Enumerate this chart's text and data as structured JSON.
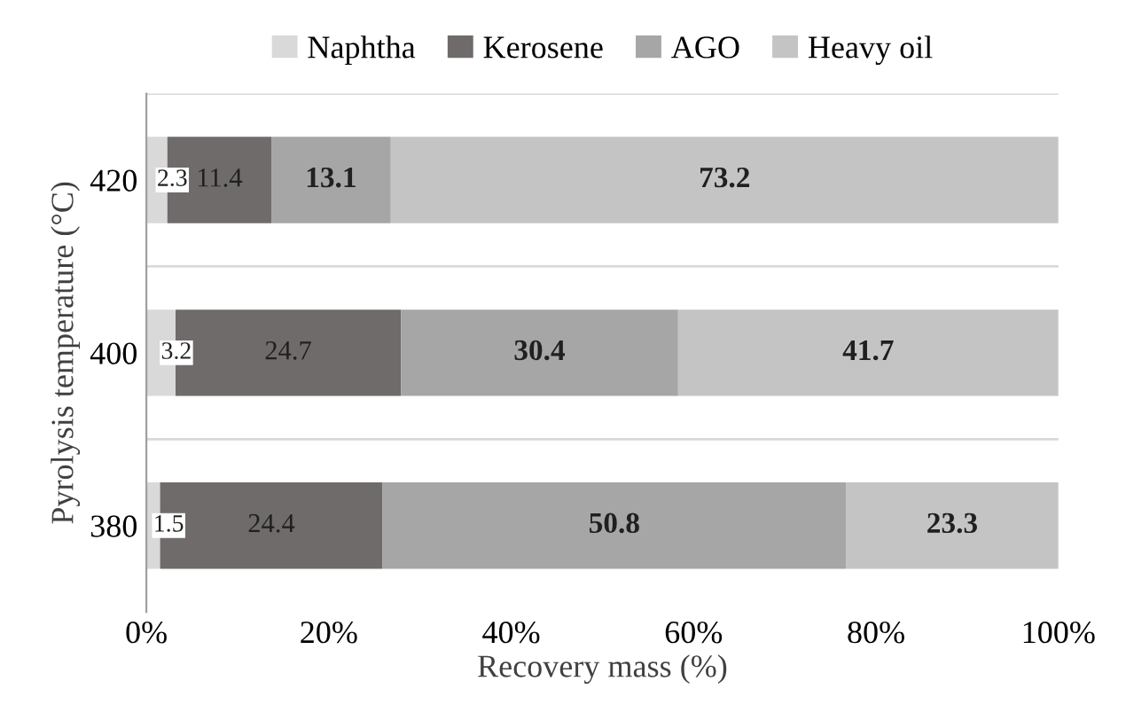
{
  "chart_data": {
    "type": "bar",
    "orientation": "horizontal",
    "stacked": true,
    "xlabel": "Recovery mass (%)",
    "ylabel": "Pyrolysis temperature (°C)",
    "categories": [
      "420",
      "400",
      "380"
    ],
    "series": [
      {
        "name": "Naphtha",
        "color": "#d9d9d9",
        "values": [
          2.3,
          3.2,
          1.5
        ]
      },
      {
        "name": "Kerosene",
        "color": "#6f6b6b",
        "values": [
          11.4,
          24.7,
          24.4
        ]
      },
      {
        "name": "AGO",
        "color": "#a6a6a6",
        "values": [
          13.1,
          30.4,
          50.8
        ]
      },
      {
        "name": "Heavy oil",
        "color": "#c4c4c4",
        "values": [
          73.2,
          41.7,
          23.3
        ]
      }
    ],
    "xlim": [
      0,
      100
    ],
    "xticks": [
      {
        "value": 0,
        "label": "0%"
      },
      {
        "value": 20,
        "label": "20%"
      },
      {
        "value": 40,
        "label": "40%"
      },
      {
        "value": 60,
        "label": "60%"
      },
      {
        "value": 80,
        "label": "80%"
      },
      {
        "value": 100,
        "label": "100%"
      }
    ],
    "data_labels": true,
    "grid": "y",
    "legend": "top"
  }
}
